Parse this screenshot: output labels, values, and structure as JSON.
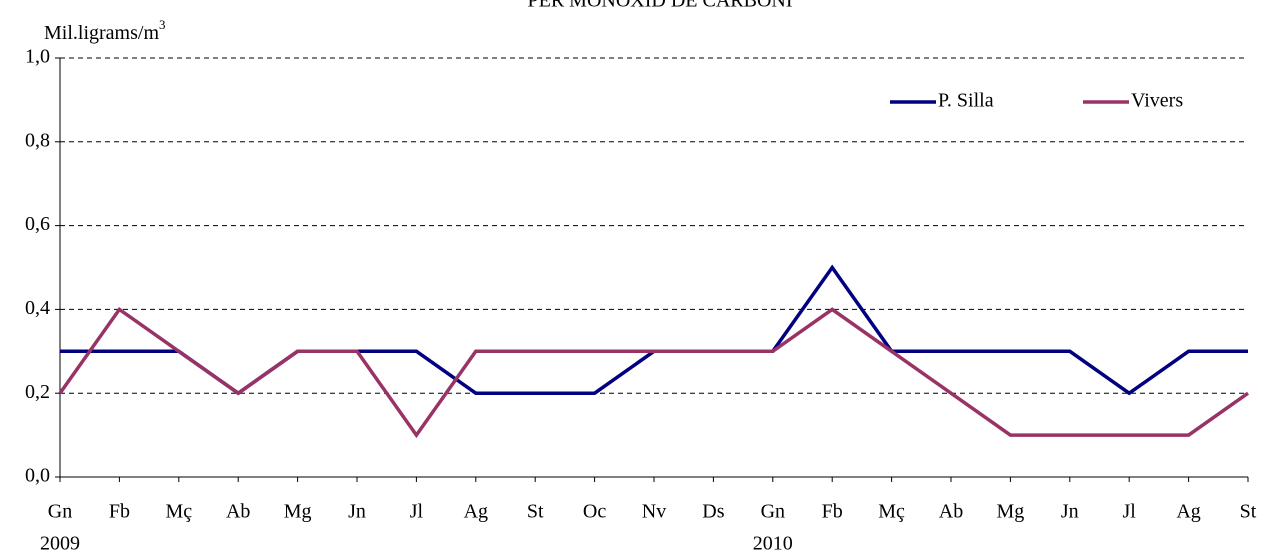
{
  "chart_data": {
    "type": "line",
    "title": "PER MONOXID DE CARBONI",
    "y_label": "Mil.ligrams/m",
    "y_label_sup": "3",
    "categories": [
      "Gn",
      "Fb",
      "Mç",
      "Ab",
      "Mg",
      "Jn",
      "Jl",
      "Ag",
      "St",
      "Oc",
      "Nv",
      "Ds",
      "Gn",
      "Fb",
      "Mç",
      "Ab",
      "Mg",
      "Jn",
      "Jl",
      "Ag",
      "St"
    ],
    "x_groups": [
      {
        "label": "2009",
        "start": 0
      },
      {
        "label": "2010",
        "start": 12
      }
    ],
    "series": [
      {
        "name": "P. Silla",
        "color": "#000080",
        "values": [
          0.3,
          0.3,
          0.3,
          0.2,
          0.3,
          0.3,
          0.3,
          0.2,
          0.2,
          0.2,
          0.3,
          0.3,
          0.3,
          0.5,
          0.3,
          0.3,
          0.3,
          0.3,
          0.2,
          0.3,
          0.3
        ]
      },
      {
        "name": "Vivers",
        "color": "#993366",
        "values": [
          0.2,
          0.4,
          0.3,
          0.2,
          0.3,
          0.3,
          0.1,
          0.3,
          0.3,
          0.3,
          0.3,
          0.3,
          0.3,
          0.4,
          0.3,
          0.2,
          0.1,
          0.1,
          0.1,
          0.1,
          0.2
        ]
      }
    ],
    "ylim": [
      0,
      1
    ],
    "yticks": [
      {
        "value": 0,
        "label": "0,0"
      },
      {
        "value": 0.2,
        "label": "0,2"
      },
      {
        "value": 0.4,
        "label": "0,4"
      },
      {
        "value": 0.6,
        "label": "0,6"
      },
      {
        "value": 0.8,
        "label": "0,8"
      },
      {
        "value": 1,
        "label": "1,0"
      }
    ],
    "grid": true,
    "legend": "top-right"
  }
}
